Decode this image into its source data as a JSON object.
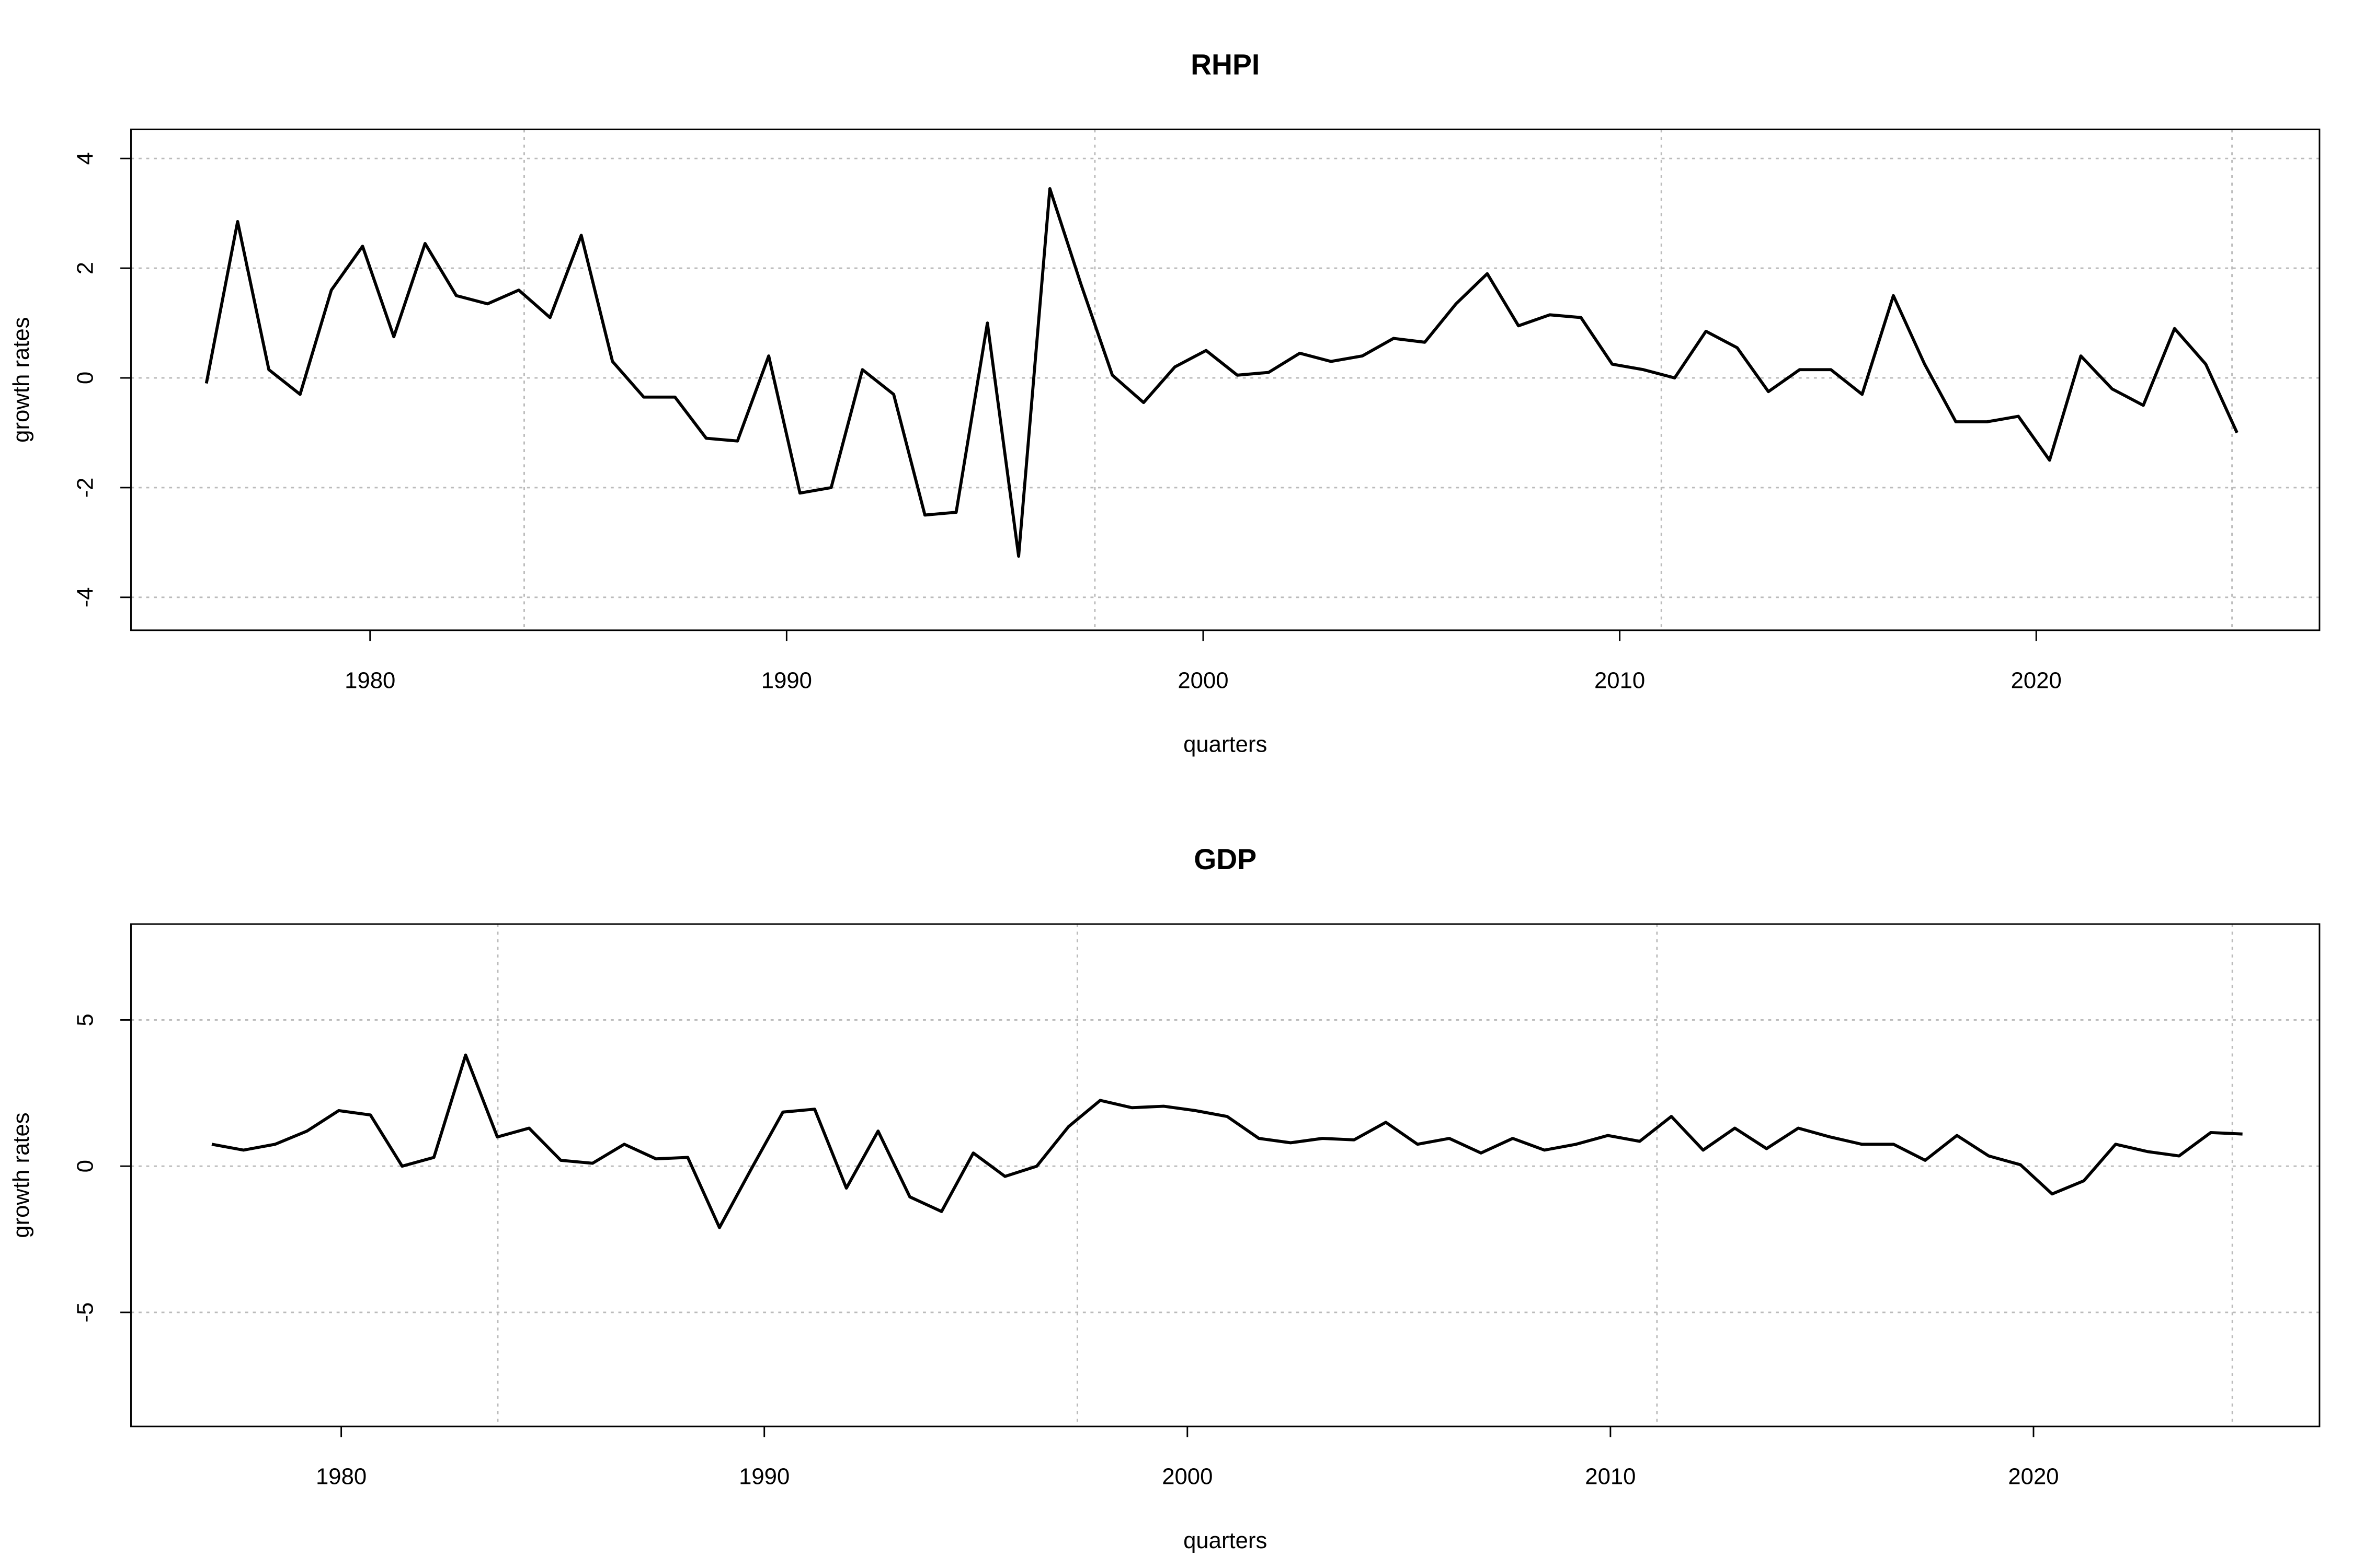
{
  "chart_data": [
    {
      "type": "line",
      "title": "RHPI",
      "xlabel": "quarters",
      "ylabel": "growth rates",
      "color": "#000000",
      "x": [
        1976.07,
        1976.82,
        1977.57,
        1978.32,
        1979.07,
        1979.82,
        1980.57,
        1981.32,
        1982.07,
        1982.82,
        1983.57,
        1984.32,
        1985.07,
        1985.82,
        1986.57,
        1987.32,
        1988.07,
        1988.82,
        1989.57,
        1990.32,
        1991.07,
        1991.82,
        1992.57,
        1993.32,
        1994.07,
        1994.82,
        1995.57,
        1996.32,
        1997.07,
        1997.82,
        1998.57,
        1999.32,
        2000.07,
        2000.82,
        2001.57,
        2002.32,
        2003.07,
        2003.82,
        2004.57,
        2005.32,
        2006.07,
        2006.82,
        2007.57,
        2008.32,
        2009.07,
        2009.82,
        2010.57,
        2011.32,
        2012.07,
        2012.82,
        2013.57,
        2014.32,
        2015.07,
        2015.82,
        2016.57,
        2017.32,
        2018.07,
        2018.82,
        2019.57,
        2020.32,
        2021.07,
        2021.82,
        2022.57,
        2023.32,
        2024.07,
        2024.82
      ],
      "values": [
        -0.1,
        2.85,
        0.15,
        -0.3,
        1.6,
        2.4,
        0.75,
        2.45,
        1.5,
        1.35,
        1.6,
        1.1,
        2.6,
        0.3,
        -0.35,
        -0.35,
        -1.1,
        -1.15,
        0.4,
        -2.1,
        -2.0,
        0.15,
        -0.3,
        -2.5,
        -2.45,
        1.0,
        -3.25,
        3.45,
        1.7,
        0.05,
        -0.45,
        0.2,
        0.5,
        0.05,
        0.1,
        0.45,
        0.3,
        0.4,
        0.72,
        0.65,
        1.35,
        1.9,
        0.95,
        1.15,
        1.1,
        0.25,
        0.15,
        0.0,
        0.85,
        0.55,
        -0.25,
        0.15,
        0.15,
        -0.3,
        1.5,
        0.25,
        -0.8,
        -0.8,
        -0.7,
        -1.5,
        0.4,
        -0.2,
        -0.5,
        0.9,
        0.25,
        -1.0
      ],
      "xlim": [
        1974.26,
        2026.8
      ],
      "ylim": [
        -4.6,
        4.53
      ],
      "xticks": [
        1980,
        1990,
        2000,
        2010,
        2020
      ],
      "yticks": [
        -4,
        -2,
        0,
        2,
        4
      ],
      "xgrid": [
        1983.7,
        1997.4,
        2011.0,
        2024.7
      ],
      "grid": true
    },
    {
      "type": "line",
      "title": "GDP",
      "xlabel": "quarters",
      "ylabel": "growth rates",
      "color": "#000000",
      "x": [
        1976.94,
        1977.69,
        1978.44,
        1979.19,
        1979.94,
        1980.69,
        1981.44,
        1982.19,
        1982.94,
        1983.69,
        1984.44,
        1985.19,
        1985.94,
        1986.69,
        1987.44,
        1988.19,
        1988.94,
        1989.69,
        1990.44,
        1991.19,
        1991.94,
        1992.69,
        1993.44,
        1994.19,
        1994.94,
        1995.69,
        1996.44,
        1997.19,
        1997.94,
        1998.69,
        1999.44,
        2000.19,
        2000.94,
        2001.69,
        2002.44,
        2003.19,
        2003.94,
        2004.69,
        2005.44,
        2006.19,
        2006.94,
        2007.69,
        2008.44,
        2009.19,
        2009.94,
        2010.69,
        2011.44,
        2012.19,
        2012.94,
        2013.69,
        2014.44,
        2015.19,
        2015.94,
        2016.69,
        2017.44,
        2018.19,
        2018.94,
        2019.69,
        2020.44,
        2021.19,
        2021.94,
        2022.69,
        2023.44,
        2024.19,
        2024.94
      ],
      "values": [
        0.75,
        0.55,
        0.75,
        1.2,
        1.9,
        1.75,
        0.0,
        0.3,
        3.8,
        1.0,
        1.3,
        0.2,
        0.1,
        0.75,
        0.25,
        0.3,
        -2.1,
        -0.1,
        1.85,
        1.95,
        -0.75,
        1.2,
        -1.05,
        -1.55,
        0.45,
        -0.35,
        0.0,
        1.35,
        2.25,
        2.0,
        2.05,
        1.9,
        1.7,
        0.95,
        0.8,
        0.95,
        0.9,
        1.5,
        0.75,
        0.95,
        0.45,
        0.95,
        0.55,
        0.75,
        1.05,
        0.85,
        1.7,
        0.55,
        1.3,
        0.6,
        1.3,
        1.0,
        0.75,
        0.75,
        0.2,
        1.05,
        0.35,
        0.05,
        -0.95,
        -0.5,
        0.75,
        0.5,
        0.35,
        1.15,
        1.1
      ],
      "xlim": [
        1975.03,
        2026.76
      ],
      "ylim": [
        -8.9,
        8.28
      ],
      "xticks": [
        1980,
        1990,
        2000,
        2010,
        2020
      ],
      "yticks": [
        -5,
        0,
        5
      ],
      "xgrid": [
        1983.7,
        1997.4,
        2011.1,
        2024.7
      ],
      "grid": true
    }
  ]
}
